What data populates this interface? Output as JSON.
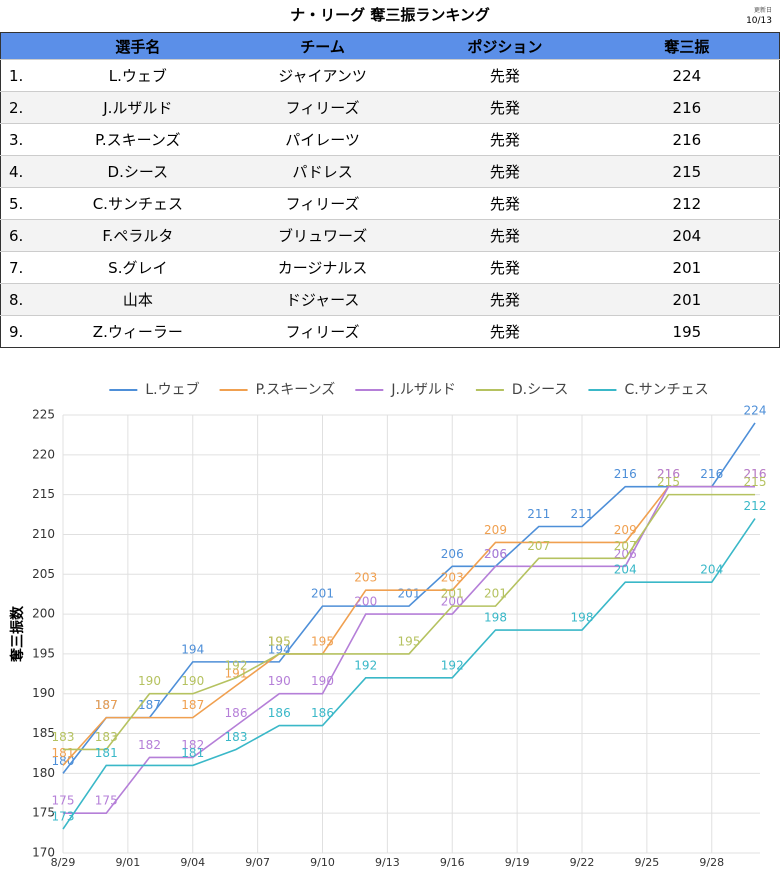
{
  "header": {
    "title": "ナ・リーグ 奪三振ランキング",
    "updated_label": "更新日",
    "updated_date": "10/13"
  },
  "table": {
    "columns": [
      "選手名",
      "チーム",
      "ポジション",
      "奪三振"
    ],
    "rows": [
      [
        "1.",
        "L.ウェブ",
        "ジャイアンツ",
        "先発",
        224
      ],
      [
        "2.",
        "J.ルザルド",
        "フィリーズ",
        "先発",
        216
      ],
      [
        "3.",
        "P.スキーンズ",
        "パイレーツ",
        "先発",
        216
      ],
      [
        "4.",
        "D.シース",
        "パドレス",
        "先発",
        215
      ],
      [
        "5.",
        "C.サンチェス",
        "フィリーズ",
        "先発",
        212
      ],
      [
        "6.",
        "F.ペラルタ",
        "ブリュワーズ",
        "先発",
        204
      ],
      [
        "7.",
        "S.グレイ",
        "カージナルス",
        "先発",
        201
      ],
      [
        "8.",
        "山本",
        "ドジャース",
        "先発",
        201
      ],
      [
        "9.",
        "Z.ウィーラー",
        "フィリーズ",
        "先発",
        195
      ]
    ]
  },
  "chart_data": {
    "type": "line",
    "ylabel": "奪三振数",
    "grid": true,
    "legend": "top",
    "x": [
      0,
      2,
      4,
      6,
      8,
      10,
      12,
      14,
      16,
      18,
      20,
      22,
      24,
      26,
      28,
      30,
      32
    ],
    "xlim": [
      0,
      32
    ],
    "xticks": [
      {
        "value": 0,
        "label": "8/29"
      },
      {
        "value": 3,
        "label": "9/01"
      },
      {
        "value": 6,
        "label": "9/04"
      },
      {
        "value": 9,
        "label": "9/07"
      },
      {
        "value": 12,
        "label": "9/10"
      },
      {
        "value": 15,
        "label": "9/13"
      },
      {
        "value": 18,
        "label": "9/16"
      },
      {
        "value": 21,
        "label": "9/19"
      },
      {
        "value": 24,
        "label": "9/22"
      },
      {
        "value": 27,
        "label": "9/25"
      },
      {
        "value": 30,
        "label": "9/28"
      }
    ],
    "ylim": [
      170,
      225
    ],
    "yticks": [
      170,
      175,
      180,
      185,
      190,
      195,
      200,
      205,
      210,
      215,
      220,
      225
    ],
    "series": [
      {
        "name": "L.ウェブ",
        "color": "#4e8fd8",
        "values": [
          180,
          187,
          187,
          194,
          194,
          194,
          201,
          201,
          201,
          206,
          206,
          211,
          211,
          216,
          216,
          216,
          224
        ]
      },
      {
        "name": "P.スキーンズ",
        "color": "#f0a050",
        "values": [
          181,
          187,
          187,
          187,
          191,
          195,
          195,
          203,
          203,
          203,
          209,
          209,
          209,
          209,
          216,
          216,
          216
        ]
      },
      {
        "name": "J.ルザルド",
        "color": "#b57fd8",
        "values": [
          175,
          175,
          182,
          182,
          186,
          190,
          190,
          200,
          200,
          200,
          206,
          206,
          206,
          206,
          216,
          216,
          216
        ]
      },
      {
        "name": "D.シース",
        "color": "#b5c260",
        "values": [
          183,
          183,
          190,
          190,
          192,
          195,
          195,
          195,
          195,
          201,
          201,
          207,
          207,
          207,
          215,
          215,
          215
        ]
      },
      {
        "name": "C.サンチェス",
        "color": "#3ab8c8",
        "values": [
          173,
          181,
          181,
          181,
          183,
          186,
          186,
          192,
          192,
          192,
          198,
          198,
          198,
          204,
          204,
          204,
          212
        ]
      }
    ]
  }
}
